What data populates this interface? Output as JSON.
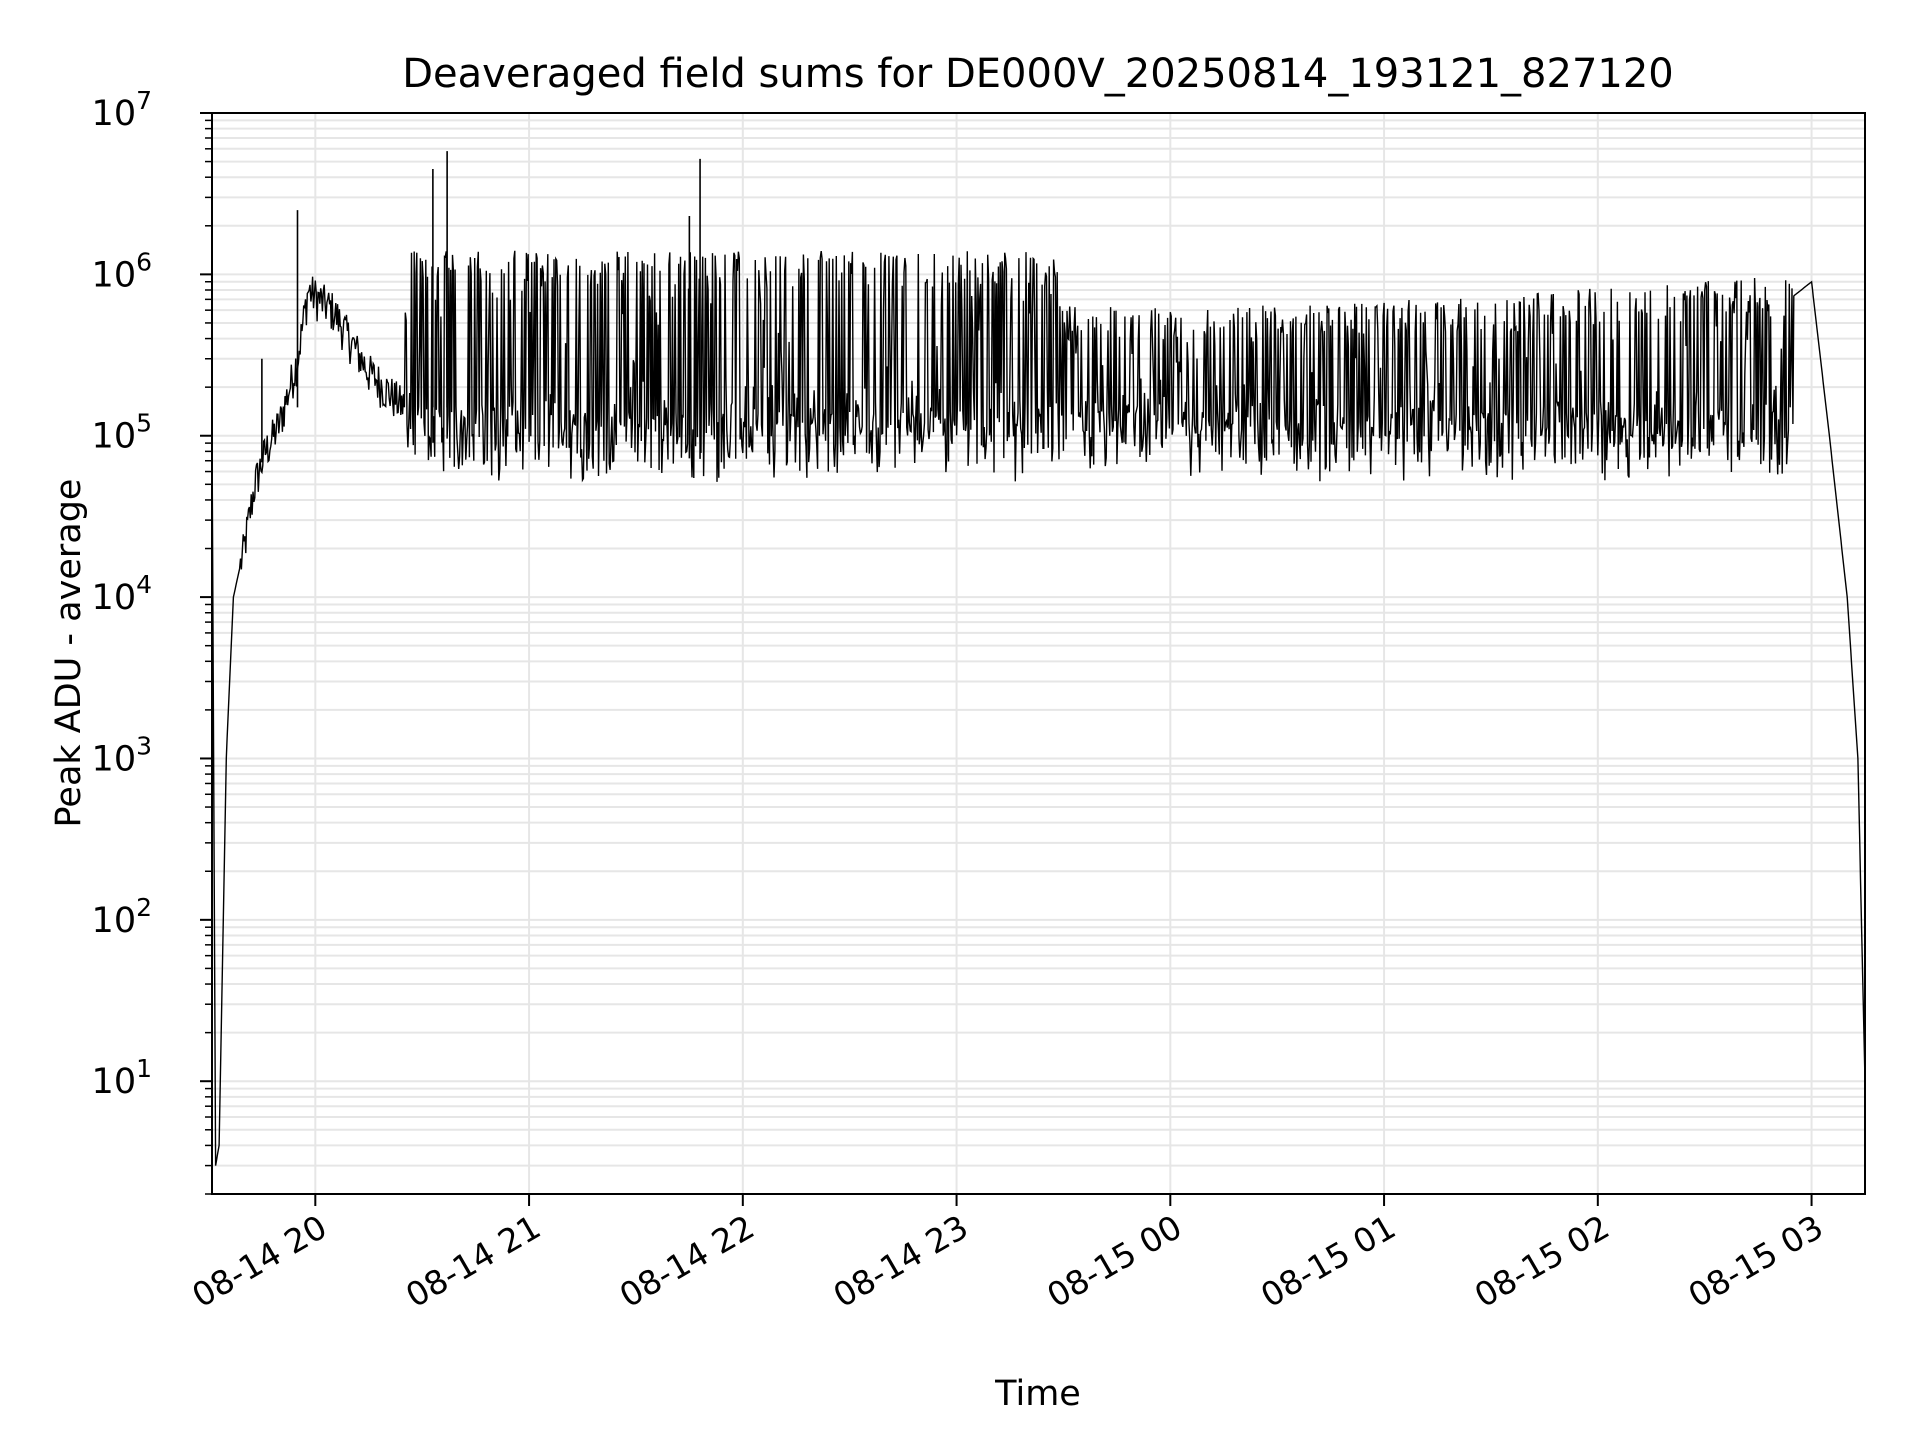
{
  "chart_data": {
    "type": "line",
    "title": "Deaveraged field sums for DE000V_20250814_193121_827120",
    "xlabel": "Time",
    "ylabel": "Peak ADU - average",
    "yscale": "log",
    "grid": "on (major and minor)",
    "line_color": "#000000",
    "grid_color": "#e6e6e6",
    "xlim": [
      "2025-08-14 19:31",
      "2025-08-15 03:15"
    ],
    "ylim": [
      2,
      10000000
    ],
    "x_ticks": [
      {
        "label": "08-14 20",
        "t": "2025-08-14 20:00"
      },
      {
        "label": "08-14 21",
        "t": "2025-08-14 21:00"
      },
      {
        "label": "08-14 22",
        "t": "2025-08-14 22:00"
      },
      {
        "label": "08-14 23",
        "t": "2025-08-14 23:00"
      },
      {
        "label": "08-15 00",
        "t": "2025-08-15 00:00"
      },
      {
        "label": "08-15 01",
        "t": "2025-08-15 01:00"
      },
      {
        "label": "08-15 02",
        "t": "2025-08-15 02:00"
      },
      {
        "label": "08-15 03",
        "t": "2025-08-15 03:00"
      }
    ],
    "y_ticks": [
      {
        "base": "10",
        "exp": "1",
        "value": 10
      },
      {
        "base": "10",
        "exp": "2",
        "value": 100
      },
      {
        "base": "10",
        "exp": "3",
        "value": 1000
      },
      {
        "base": "10",
        "exp": "4",
        "value": 10000
      },
      {
        "base": "10",
        "exp": "5",
        "value": 100000
      },
      {
        "base": "10",
        "exp": "6",
        "value": 1000000
      },
      {
        "base": "10",
        "exp": "7",
        "value": 10000000
      }
    ],
    "series": [
      {
        "description_points": [
          {
            "t": "2025-08-14 19:31",
            "y": 120000
          },
          {
            "t": "2025-08-14 19:32",
            "y": 3
          },
          {
            "t": "2025-08-14 19:33",
            "y": 4
          },
          {
            "t": "2025-08-14 19:35",
            "y": 1000
          },
          {
            "t": "2025-08-14 19:37",
            "y": 10000
          },
          {
            "t": "2025-08-14 19:40",
            "y": 20000
          },
          {
            "t": "2025-08-14 19:43",
            "y": 50000
          },
          {
            "t": "2025-08-14 19:46",
            "y": 80000
          },
          {
            "t": "2025-08-14 19:50",
            "y": 120000
          },
          {
            "t": "2025-08-14 19:55",
            "y": 300000
          },
          {
            "t": "2025-08-14 19:58",
            "y": 800000
          },
          {
            "t": "2025-08-14 20:05",
            "y": 600000
          },
          {
            "t": "2025-08-14 20:15",
            "y": 250000
          },
          {
            "t": "2025-08-14 20:25",
            "y": 150000
          },
          {
            "t": "2025-08-14 20:40",
            "y": 100000
          },
          {
            "t": "2025-08-14 21:00",
            "y": 80000
          },
          {
            "t": "2025-08-14 22:00",
            "y": 70000
          },
          {
            "t": "2025-08-14 23:00",
            "y": 65000
          },
          {
            "t": "2025-08-15 00:00",
            "y": 60000
          },
          {
            "t": "2025-08-15 01:00",
            "y": 60000
          },
          {
            "t": "2025-08-15 02:00",
            "y": 60000
          },
          {
            "t": "2025-08-15 02:30",
            "y": 200000
          },
          {
            "t": "2025-08-15 02:50",
            "y": 600000
          },
          {
            "t": "2025-08-15 03:00",
            "y": 900000
          },
          {
            "t": "2025-08-15 03:05",
            "y": 100000
          },
          {
            "t": "2025-08-15 03:10",
            "y": 10000
          },
          {
            "t": "2025-08-15 03:13",
            "y": 1000
          },
          {
            "t": "2025-08-15 03:15",
            "y": 10
          }
        ],
        "band_low": 60000,
        "band_high": 1400000,
        "spikes": [
          {
            "t": "2025-08-14 19:55",
            "y": 2500000
          },
          {
            "t": "2025-08-14 20:33",
            "y": 4500000
          },
          {
            "t": "2025-08-14 20:37",
            "y": 5800000
          },
          {
            "t": "2025-08-14 21:45",
            "y": 2300000
          },
          {
            "t": "2025-08-14 21:48",
            "y": 5200000
          },
          {
            "t": "2025-08-14 19:45",
            "y": 300000
          }
        ]
      }
    ]
  }
}
